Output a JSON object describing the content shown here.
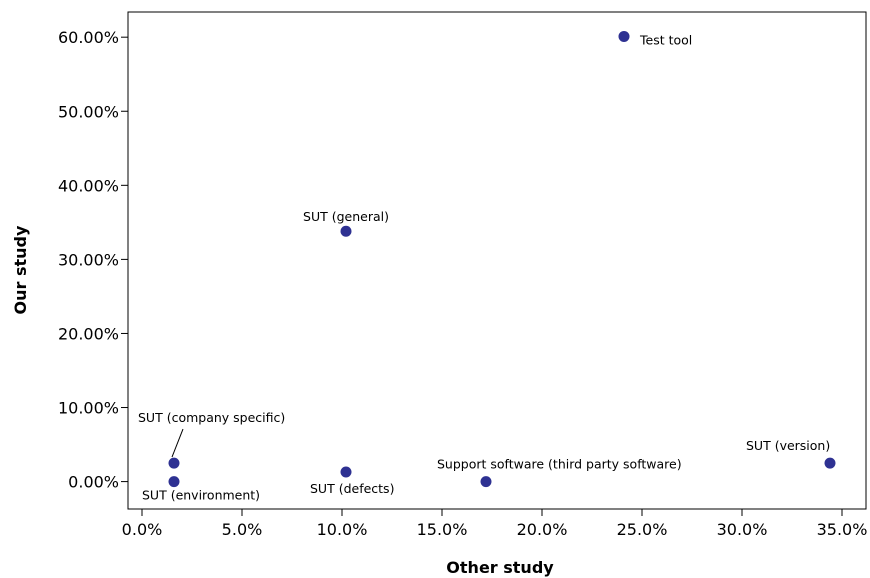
{
  "chart_data": {
    "type": "scatter",
    "xlabel": "Other study",
    "ylabel": "Our study",
    "xlim": [
      -0.007,
      0.362
    ],
    "ylim": [
      -0.037,
      0.634
    ],
    "x_ticks": [
      0,
      0.05,
      0.1,
      0.15,
      0.2,
      0.25,
      0.3,
      0.35
    ],
    "x_tick_labels": [
      "0.0%",
      "5.0%",
      "10.0%",
      "15.0%",
      "20.0%",
      "25.0%",
      "30.0%",
      "35.0%"
    ],
    "y_ticks": [
      0,
      0.1,
      0.2,
      0.3,
      0.4,
      0.5,
      0.6
    ],
    "y_tick_labels": [
      "0.00%",
      "10.00%",
      "20.00%",
      "30.00%",
      "40.00%",
      "50.00%",
      "60.00%"
    ],
    "grid": false,
    "point_color": "#2e3192",
    "points": [
      {
        "label": "Test tool",
        "x": 0.241,
        "y": 0.601
      },
      {
        "label": "SUT (general)",
        "x": 0.102,
        "y": 0.338
      },
      {
        "label": "SUT (company specific)",
        "x": 0.016,
        "y": 0.025
      },
      {
        "label": "SUT (environment)",
        "x": 0.016,
        "y": 0.0
      },
      {
        "label": "SUT (defects)",
        "x": 0.102,
        "y": 0.013
      },
      {
        "label": "Support software (third party software)",
        "x": 0.172,
        "y": 0.0
      },
      {
        "label": "SUT (version)",
        "x": 0.344,
        "y": 0.025
      }
    ]
  }
}
